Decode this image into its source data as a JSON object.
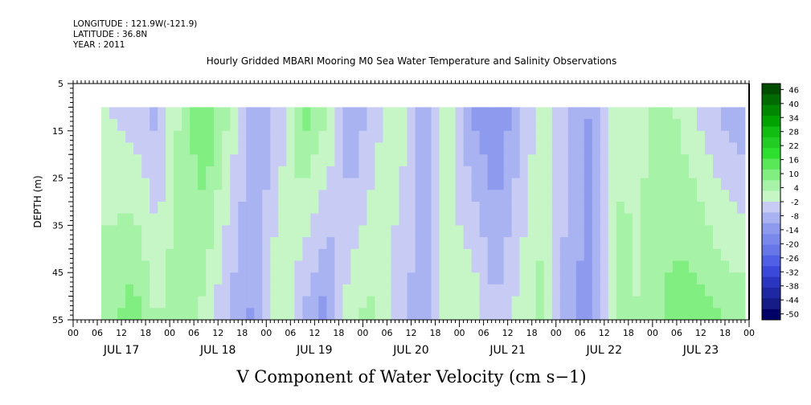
{
  "header": {
    "longitude": "LONGITUDE : 121.9W(-121.9)",
    "latitude": "LATITUDE : 36.8N",
    "year": "YEAR : 2011"
  },
  "chart_data": {
    "type": "heatmap",
    "title": "Hourly Gridded MBARI Mooring M0 Sea Water Temperature and Salinity Observations",
    "xlabel": "V Component of Water Velocity (cm s−1)",
    "ylabel": "DEPTH (m)",
    "y_range": [
      5,
      55
    ],
    "y_ticks": [
      5,
      15,
      25,
      35,
      45,
      55
    ],
    "y_reversed": true,
    "data_depth_range": [
      10,
      55
    ],
    "x_range": [
      "2011-07-17 00:00",
      "2011-07-24 00:00"
    ],
    "data_time_range": [
      "2011-07-17 07:00",
      "2011-07-23 23:00"
    ],
    "x_hour_ticks": [
      "00",
      "06",
      "12",
      "18",
      "00",
      "06",
      "12",
      "18",
      "00",
      "06",
      "12",
      "18",
      "00",
      "06",
      "12",
      "18",
      "00",
      "06",
      "12",
      "18",
      "00",
      "06",
      "12",
      "18",
      "00",
      "06",
      "12",
      "18",
      "00"
    ],
    "x_date_labels": [
      "JUL 17",
      "JUL 18",
      "JUL 19",
      "JUL 20",
      "JUL 21",
      "JUL 22",
      "JUL 23"
    ],
    "colorbar": {
      "ticks": [
        "46",
        "40",
        "34",
        "28",
        "22",
        "16",
        "10",
        "4",
        "-2",
        "-8",
        "-14",
        "-20",
        "-26",
        "-32",
        "-38",
        "-44",
        "-50"
      ],
      "min": -50,
      "max": 50
    },
    "colors": {
      "strong_negative": "#000066",
      "negative": "#4f5fe6",
      "weak_negative": "#a9b3f2",
      "weak_positive": "#a6f2a6",
      "positive": "#2ee02e",
      "strong_positive": "#004d00"
    },
    "column_profiles": [
      {
        "time": "2011-07-17 09:00",
        "top": 0,
        "bottom": 8
      },
      {
        "time": "2011-07-17 15:00",
        "top": -3,
        "bottom": 12
      },
      {
        "time": "2011-07-17 21:00",
        "top": -6,
        "bottom": 4
      },
      {
        "time": "2011-07-18 03:00",
        "top": 6,
        "bottom": 10
      },
      {
        "time": "2011-07-18 09:00",
        "top": 14,
        "bottom": 2
      },
      {
        "time": "2011-07-18 15:00",
        "top": 4,
        "bottom": -6
      },
      {
        "time": "2011-07-18 21:00",
        "top": -8,
        "bottom": -10
      },
      {
        "time": "2011-07-19 03:00",
        "top": -4,
        "bottom": 6
      },
      {
        "time": "2011-07-19 09:00",
        "top": 12,
        "bottom": -6
      },
      {
        "time": "2011-07-19 15:00",
        "top": 6,
        "bottom": -12
      },
      {
        "time": "2011-07-19 21:00",
        "top": -10,
        "bottom": 4
      },
      {
        "time": "2011-07-20 03:00",
        "top": -2,
        "bottom": 6
      },
      {
        "time": "2011-07-20 09:00",
        "top": 4,
        "bottom": -4
      },
      {
        "time": "2011-07-20 15:00",
        "top": -10,
        "bottom": -6
      },
      {
        "time": "2011-07-20 21:00",
        "top": 2,
        "bottom": 2
      },
      {
        "time": "2011-07-21 03:00",
        "top": -10,
        "bottom": 4
      },
      {
        "time": "2011-07-21 09:00",
        "top": -14,
        "bottom": -4
      },
      {
        "time": "2011-07-21 15:00",
        "top": -6,
        "bottom": 2
      },
      {
        "time": "2011-07-21 21:00",
        "top": 4,
        "bottom": 6
      },
      {
        "time": "2011-07-22 03:00",
        "top": -4,
        "bottom": -8
      },
      {
        "time": "2011-07-22 09:00",
        "top": -10,
        "bottom": -12
      },
      {
        "time": "2011-07-22 15:00",
        "top": 2,
        "bottom": 8
      },
      {
        "time": "2011-07-22 21:00",
        "top": 4,
        "bottom": 4
      },
      {
        "time": "2011-07-23 03:00",
        "top": 6,
        "bottom": 10
      },
      {
        "time": "2011-07-23 09:00",
        "top": 2,
        "bottom": 12
      },
      {
        "time": "2011-07-23 15:00",
        "top": -4,
        "bottom": 10
      },
      {
        "time": "2011-07-23 21:00",
        "top": -8,
        "bottom": 8
      }
    ]
  }
}
